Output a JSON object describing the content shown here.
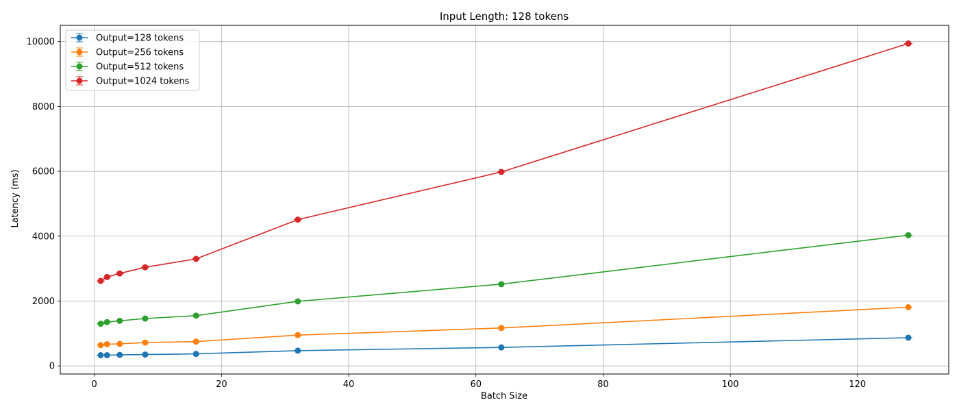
{
  "chart_data": {
    "type": "line",
    "title": "Input Length: 128 tokens",
    "xlabel": "Batch Size",
    "ylabel": "Latency (ms)",
    "xlim": [
      -5.35,
      134.35
    ],
    "ylim": [
      -250,
      10500
    ],
    "xticks": [
      0,
      20,
      40,
      60,
      80,
      100,
      120
    ],
    "yticks": [
      0,
      2000,
      4000,
      6000,
      8000,
      10000
    ],
    "grid": true,
    "legend_position": "top-left",
    "x": [
      1,
      2,
      4,
      8,
      16,
      32,
      64,
      128
    ],
    "series": [
      {
        "name": "Output=128 tokens",
        "color": "#1f77b4",
        "values": [
          330,
          330,
          340,
          350,
          370,
          470,
          570,
          870
        ]
      },
      {
        "name": "Output=256 tokens",
        "color": "#ff7f0e",
        "values": [
          640,
          670,
          680,
          720,
          750,
          950,
          1170,
          1810
        ]
      },
      {
        "name": "Output=512 tokens",
        "color": "#2ca02c",
        "values": [
          1300,
          1350,
          1390,
          1460,
          1550,
          1990,
          2520,
          4030
        ]
      },
      {
        "name": "Output=1024 tokens",
        "color": "#d62728",
        "values": [
          2620,
          2740,
          2850,
          3040,
          3300,
          4510,
          5980,
          9940
        ]
      }
    ]
  }
}
